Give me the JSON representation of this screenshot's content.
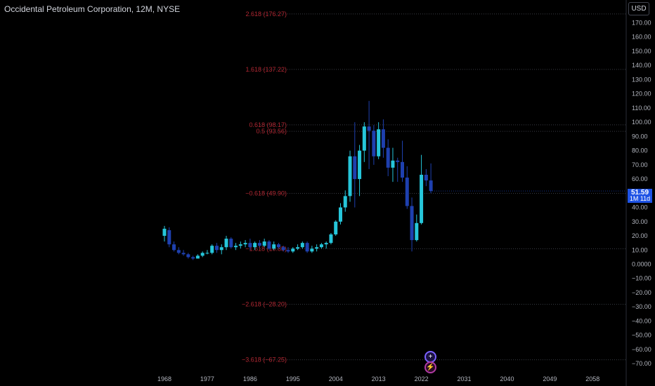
{
  "header": {
    "title": "Occidental Petroleum Corporation, 12M, NYSE"
  },
  "toolbar": {
    "currency": "USD"
  },
  "price_axis": {
    "labels": [
      "170.00",
      "160.00",
      "150.00",
      "140.00",
      "130.00",
      "120.00",
      "110.00",
      "100.00",
      "90.00",
      "80.00",
      "70.00",
      "60.00",
      "50.00",
      "40.00",
      "30.00",
      "20.00",
      "10.00",
      "0.0000",
      "−10.00",
      "−20.00",
      "−30.00",
      "−40.00",
      "−50.00",
      "−60.00",
      "−70.00"
    ],
    "values": [
      170,
      160,
      150,
      140,
      130,
      120,
      110,
      100,
      90,
      80,
      70,
      60,
      50,
      40,
      30,
      20,
      10,
      0,
      -10,
      -20,
      -30,
      -40,
      -50,
      -60,
      -70
    ]
  },
  "time_axis": {
    "labels": [
      "1968",
      "1977",
      "1986",
      "1995",
      "2004",
      "2013",
      "2022",
      "2031",
      "2040",
      "2049",
      "2058"
    ]
  },
  "last_price": {
    "value": "51.59",
    "countdown": "1M 11d"
  },
  "fib_levels": [
    {
      "label": "2.618 (176.27)",
      "value": 176.27
    },
    {
      "label": "1.618 (137.22)",
      "value": 137.22
    },
    {
      "label": "0.618 (98.17)",
      "value": 98.17
    },
    {
      "label": "0.5 (93.56)",
      "value": 93.56
    },
    {
      "label": "−0.618 (49.90)",
      "value": 49.9
    },
    {
      "label": "−1.618 (10.85)",
      "value": 10.85
    },
    {
      "label": "−2.618 (−28.20)",
      "value": -28.2
    },
    {
      "label": "−3.618 (−67.25)",
      "value": -67.25
    }
  ],
  "colors": {
    "up": "#26c6da",
    "down": "#1e40af",
    "fib": "#b22833",
    "badge": "#1e53e5"
  },
  "chart_data": {
    "type": "candlestick",
    "title": "Occidental Petroleum Corporation, 12M, NYSE",
    "ylim": [
      -75,
      180
    ],
    "xlim": [
      1968,
      2058
    ],
    "series": [
      {
        "x": 1968,
        "o": 20,
        "h": 27,
        "l": 16,
        "c": 25
      },
      {
        "x": 1969,
        "o": 24,
        "h": 26,
        "l": 12,
        "c": 14
      },
      {
        "x": 1970,
        "o": 14,
        "h": 16,
        "l": 9,
        "c": 10
      },
      {
        "x": 1971,
        "o": 10,
        "h": 12,
        "l": 7,
        "c": 8
      },
      {
        "x": 1972,
        "o": 8,
        "h": 10,
        "l": 6,
        "c": 7
      },
      {
        "x": 1973,
        "o": 7,
        "h": 8,
        "l": 4,
        "c": 5
      },
      {
        "x": 1974,
        "o": 5,
        "h": 6,
        "l": 3,
        "c": 4
      },
      {
        "x": 1975,
        "o": 4,
        "h": 7,
        "l": 4,
        "c": 6
      },
      {
        "x": 1976,
        "o": 6,
        "h": 9,
        "l": 5,
        "c": 8
      },
      {
        "x": 1977,
        "o": 8,
        "h": 10,
        "l": 7,
        "c": 8
      },
      {
        "x": 1978,
        "o": 8,
        "h": 14,
        "l": 7,
        "c": 13
      },
      {
        "x": 1979,
        "o": 13,
        "h": 15,
        "l": 8,
        "c": 10
      },
      {
        "x": 1980,
        "o": 10,
        "h": 14,
        "l": 7,
        "c": 12
      },
      {
        "x": 1981,
        "o": 12,
        "h": 20,
        "l": 10,
        "c": 18
      },
      {
        "x": 1982,
        "o": 18,
        "h": 19,
        "l": 11,
        "c": 12
      },
      {
        "x": 1983,
        "o": 12,
        "h": 15,
        "l": 10,
        "c": 13
      },
      {
        "x": 1984,
        "o": 13,
        "h": 16,
        "l": 11,
        "c": 14
      },
      {
        "x": 1985,
        "o": 14,
        "h": 17,
        "l": 12,
        "c": 15
      },
      {
        "x": 1986,
        "o": 15,
        "h": 18,
        "l": 10,
        "c": 12
      },
      {
        "x": 1987,
        "o": 12,
        "h": 16,
        "l": 10,
        "c": 15
      },
      {
        "x": 1988,
        "o": 15,
        "h": 17,
        "l": 12,
        "c": 13
      },
      {
        "x": 1989,
        "o": 13,
        "h": 18,
        "l": 12,
        "c": 16
      },
      {
        "x": 1990,
        "o": 16,
        "h": 17,
        "l": 10,
        "c": 11
      },
      {
        "x": 1991,
        "o": 11,
        "h": 16,
        "l": 10,
        "c": 14
      },
      {
        "x": 1992,
        "o": 14,
        "h": 15,
        "l": 11,
        "c": 12
      },
      {
        "x": 1993,
        "o": 12,
        "h": 13,
        "l": 9,
        "c": 10
      },
      {
        "x": 1994,
        "o": 10,
        "h": 12,
        "l": 8,
        "c": 9
      },
      {
        "x": 1995,
        "o": 9,
        "h": 12,
        "l": 8,
        "c": 11
      },
      {
        "x": 1996,
        "o": 11,
        "h": 14,
        "l": 10,
        "c": 12
      },
      {
        "x": 1997,
        "o": 12,
        "h": 16,
        "l": 11,
        "c": 15
      },
      {
        "x": 1998,
        "o": 15,
        "h": 16,
        "l": 8,
        "c": 9
      },
      {
        "x": 1999,
        "o": 9,
        "h": 13,
        "l": 8,
        "c": 11
      },
      {
        "x": 2000,
        "o": 11,
        "h": 14,
        "l": 9,
        "c": 12
      },
      {
        "x": 2001,
        "o": 12,
        "h": 15,
        "l": 11,
        "c": 14
      },
      {
        "x": 2002,
        "o": 14,
        "h": 16,
        "l": 11,
        "c": 15
      },
      {
        "x": 2003,
        "o": 15,
        "h": 22,
        "l": 14,
        "c": 21
      },
      {
        "x": 2004,
        "o": 21,
        "h": 31,
        "l": 20,
        "c": 30
      },
      {
        "x": 2005,
        "o": 30,
        "h": 43,
        "l": 28,
        "c": 40
      },
      {
        "x": 2006,
        "o": 40,
        "h": 52,
        "l": 37,
        "c": 48
      },
      {
        "x": 2007,
        "o": 48,
        "h": 80,
        "l": 44,
        "c": 76
      },
      {
        "x": 2008,
        "o": 76,
        "h": 100,
        "l": 40,
        "c": 60
      },
      {
        "x": 2009,
        "o": 60,
        "h": 84,
        "l": 48,
        "c": 80
      },
      {
        "x": 2010,
        "o": 80,
        "h": 100,
        "l": 72,
        "c": 97
      },
      {
        "x": 2011,
        "o": 97,
        "h": 115,
        "l": 67,
        "c": 94
      },
      {
        "x": 2012,
        "o": 94,
        "h": 98,
        "l": 70,
        "c": 76
      },
      {
        "x": 2013,
        "o": 76,
        "h": 100,
        "l": 74,
        "c": 95
      },
      {
        "x": 2014,
        "o": 95,
        "h": 102,
        "l": 75,
        "c": 82
      },
      {
        "x": 2015,
        "o": 82,
        "h": 88,
        "l": 62,
        "c": 68
      },
      {
        "x": 2016,
        "o": 68,
        "h": 82,
        "l": 58,
        "c": 73
      },
      {
        "x": 2017,
        "o": 73,
        "h": 75,
        "l": 58,
        "c": 72
      },
      {
        "x": 2018,
        "o": 72,
        "h": 87,
        "l": 58,
        "c": 61
      },
      {
        "x": 2019,
        "o": 61,
        "h": 69,
        "l": 39,
        "c": 41
      },
      {
        "x": 2020,
        "o": 41,
        "h": 47,
        "l": 9,
        "c": 17
      },
      {
        "x": 2021,
        "o": 17,
        "h": 35,
        "l": 16,
        "c": 29
      },
      {
        "x": 2022,
        "o": 29,
        "h": 77,
        "l": 28,
        "c": 63
      },
      {
        "x": 2023,
        "o": 63,
        "h": 67,
        "l": 55,
        "c": 59
      },
      {
        "x": 2024,
        "o": 59,
        "h": 71,
        "l": 50,
        "c": 51.59
      }
    ]
  }
}
